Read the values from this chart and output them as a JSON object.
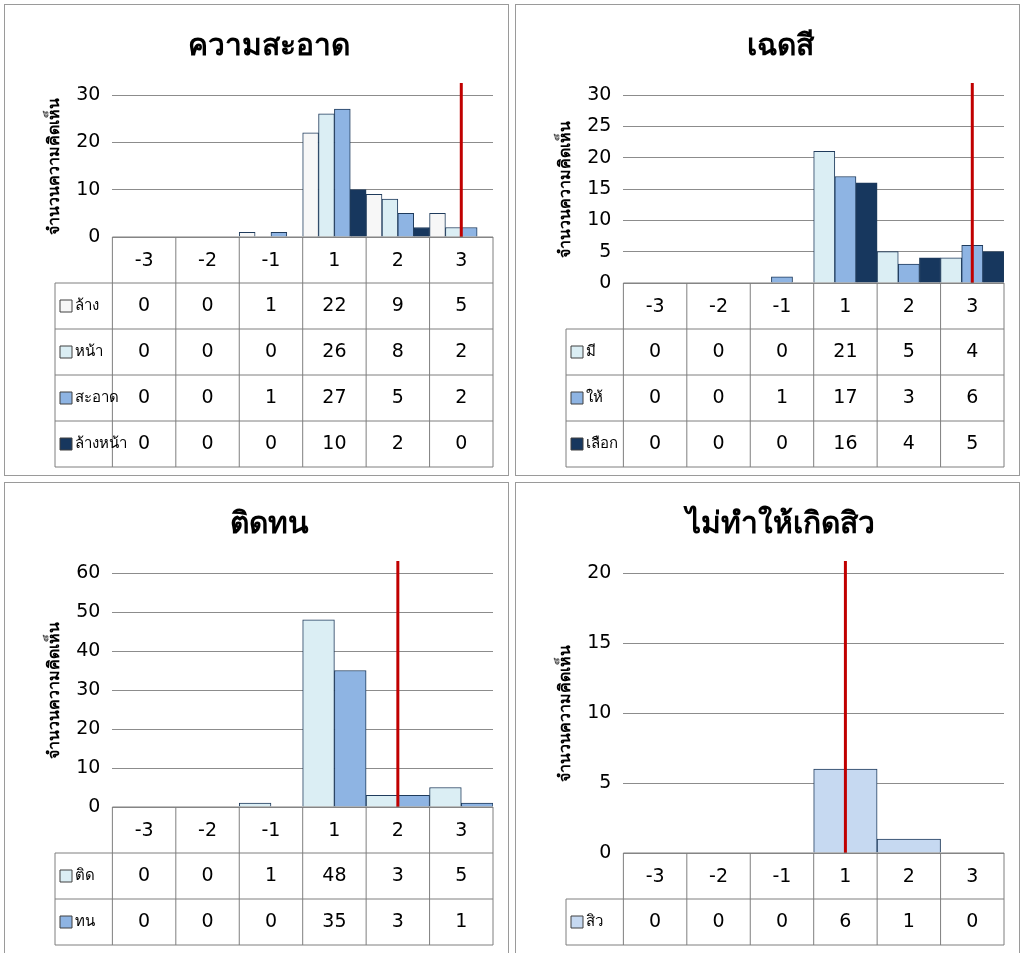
{
  "chart_data": [
    {
      "type": "bar",
      "title": "ความสะอาด",
      "ylabel": "จำนวนความคิดเห็น",
      "categories": [
        "-3",
        "-2",
        "-1",
        "1",
        "2",
        "3"
      ],
      "ylim": [
        0,
        30
      ],
      "yticks": [
        0,
        10,
        20,
        30
      ],
      "grid": "y",
      "legend": "bottom",
      "data_labels": true,
      "series": [
        {
          "name": "ล้าง",
          "color": "#f7f7f7",
          "values": [
            0,
            0,
            1,
            22,
            9,
            5
          ]
        },
        {
          "name": "หน้า",
          "color": "#dbeef4",
          "values": [
            0,
            0,
            0,
            26,
            8,
            2
          ]
        },
        {
          "name": "สะอาด",
          "color": "#8eb4e3",
          "values": [
            0,
            0,
            1,
            27,
            5,
            2
          ]
        },
        {
          "name": "ล้างหน้า",
          "color": "#17375e",
          "values": [
            0,
            0,
            0,
            10,
            2,
            0
          ]
        }
      ],
      "ref_lines": [
        {
          "axis": "x",
          "value": "3",
          "color": "#c00000"
        }
      ]
    },
    {
      "type": "bar",
      "title": "เฉดสี",
      "ylabel": "จำนวนความคิดเห็น",
      "categories": [
        "-3",
        "-2",
        "-1",
        "1",
        "2",
        "3"
      ],
      "ylim": [
        0,
        30
      ],
      "yticks": [
        0,
        5,
        10,
        15,
        20,
        25,
        30
      ],
      "grid": "y",
      "legend": "bottom",
      "data_labels": true,
      "series": [
        {
          "name": "มี",
          "color": "#dbeef4",
          "values": [
            0,
            0,
            0,
            21,
            5,
            4
          ]
        },
        {
          "name": "ให้",
          "color": "#8eb4e3",
          "values": [
            0,
            0,
            1,
            17,
            3,
            6
          ]
        },
        {
          "name": "เลือก",
          "color": "#17375e",
          "values": [
            0,
            0,
            0,
            16,
            4,
            5
          ]
        }
      ],
      "ref_lines": [
        {
          "axis": "x",
          "value": "3",
          "color": "#c00000"
        }
      ]
    },
    {
      "type": "bar",
      "title": "ติดทน",
      "ylabel": "จำนวนความคิดเห็น",
      "categories": [
        "-3",
        "-2",
        "-1",
        "1",
        "2",
        "3"
      ],
      "ylim": [
        0,
        60
      ],
      "yticks": [
        0,
        10,
        20,
        30,
        40,
        50,
        60
      ],
      "grid": "y",
      "legend": "bottom",
      "data_labels": true,
      "series": [
        {
          "name": "ติด",
          "color": "#dbeef4",
          "values": [
            0,
            0,
            1,
            48,
            3,
            5
          ]
        },
        {
          "name": "ทน",
          "color": "#8eb4e3",
          "values": [
            0,
            0,
            0,
            35,
            3,
            1
          ]
        }
      ],
      "ref_lines": [
        {
          "axis": "x",
          "value": "2",
          "color": "#c00000"
        }
      ]
    },
    {
      "type": "bar",
      "title": "ไม่ทำให้เกิดสิว",
      "ylabel": "จำนวนความคิดเห็น",
      "categories": [
        "-3",
        "-2",
        "-1",
        "1",
        "2",
        "3"
      ],
      "ylim": [
        0,
        20
      ],
      "yticks": [
        0,
        5,
        10,
        15,
        20
      ],
      "grid": "y",
      "legend": "bottom",
      "data_labels": true,
      "series": [
        {
          "name": "สิว",
          "color": "#c6d9f1",
          "values": [
            0,
            0,
            0,
            6,
            1,
            0
          ]
        }
      ],
      "ref_lines": [
        {
          "axis": "x",
          "value": "1",
          "color": "#c00000"
        }
      ]
    }
  ]
}
